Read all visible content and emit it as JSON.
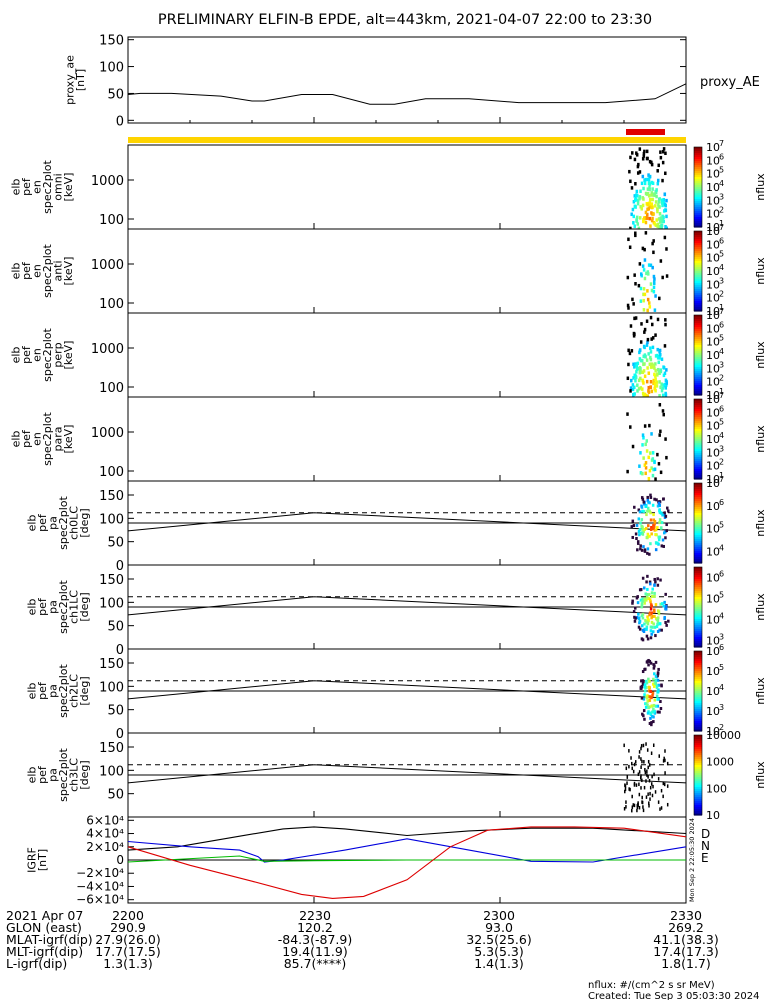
{
  "title": "PRELIMINARY ELFIN-B EPDE, alt=443km, 2021-04-07 22:00 to 23:30",
  "bars": {
    "yellow": "#ffd400",
    "red": "#e00000"
  },
  "chart_data": [
    {
      "type": "line",
      "name": "proxy_ae",
      "ylabel_lines": [
        "proxy_ae",
        "[nT]"
      ],
      "legend": "proxy_AE",
      "ylim": [
        -5,
        155
      ],
      "yticks": [
        "0",
        "50",
        "100",
        "150"
      ],
      "ytick_values": [
        0,
        50,
        100,
        150
      ],
      "x_minutes": [
        0,
        2,
        7,
        15,
        20,
        22,
        28,
        33,
        39,
        43,
        48,
        55,
        63,
        70,
        77,
        85,
        90
      ],
      "values": [
        48,
        50,
        50,
        45,
        36,
        36,
        48,
        48,
        30,
        30,
        40,
        40,
        33,
        33,
        33,
        40,
        68
      ]
    },
    {
      "type": "heatmap",
      "ylabel_lines": [
        "elb",
        "pef",
        "en",
        "spec2plot",
        "omni",
        "[keV]"
      ],
      "yticks": [
        "100",
        "1000"
      ],
      "scale": "log",
      "colorbar": {
        "label": "nflux",
        "ticks": [
          "10",
          "10",
          "10",
          "10",
          "10",
          "10",
          "10"
        ],
        "exponents": [
          "1",
          "2",
          "3",
          "4",
          "5",
          "6",
          "7"
        ],
        "range": [
          1,
          7
        ]
      }
    },
    {
      "type": "heatmap",
      "ylabel_lines": [
        "elb",
        "pef",
        "en",
        "spec2plot",
        "anti",
        "[keV]"
      ],
      "yticks": [
        "100",
        "1000"
      ],
      "scale": "log",
      "colorbar": {
        "label": "nflux",
        "ticks": [
          "10",
          "10",
          "10",
          "10",
          "10",
          "10",
          "10"
        ],
        "exponents": [
          "1",
          "2",
          "3",
          "4",
          "5",
          "6",
          "7"
        ],
        "range": [
          1,
          7
        ]
      }
    },
    {
      "type": "heatmap",
      "ylabel_lines": [
        "elb",
        "pef",
        "en",
        "spec2plot",
        "perp",
        "[keV]"
      ],
      "yticks": [
        "100",
        "1000"
      ],
      "scale": "log",
      "colorbar": {
        "label": "nflux",
        "ticks": [
          "10",
          "10",
          "10",
          "10",
          "10",
          "10",
          "10"
        ],
        "exponents": [
          "1",
          "2",
          "3",
          "4",
          "5",
          "6",
          "7"
        ],
        "range": [
          1,
          7
        ]
      }
    },
    {
      "type": "heatmap",
      "ylabel_lines": [
        "elb",
        "pef",
        "en",
        "spec2plot",
        "para",
        "[keV]"
      ],
      "yticks": [
        "100",
        "1000"
      ],
      "scale": "log",
      "colorbar": {
        "label": "nflux",
        "ticks": [
          "10",
          "10",
          "10",
          "10",
          "10",
          "10",
          "10"
        ],
        "exponents": [
          "1",
          "2",
          "3",
          "4",
          "5",
          "6",
          "7"
        ],
        "range": [
          1,
          7
        ]
      }
    },
    {
      "type": "heatmap",
      "ylabel_lines": [
        "elb",
        "pef",
        "pa",
        "spec2plot",
        "ch0LC",
        "[deg]"
      ],
      "yticks": [
        "0",
        "50",
        "100",
        "150"
      ],
      "ylim": [
        0,
        180
      ],
      "lines": {
        "dashed": 112,
        "solid": 90
      },
      "colorbar": {
        "label": "nflux",
        "ticks": [
          "10",
          "10",
          "10",
          "10"
        ],
        "exponents": [
          "4",
          "5",
          "6",
          "7"
        ],
        "range": [
          3.5,
          7
        ]
      }
    },
    {
      "type": "heatmap",
      "ylabel_lines": [
        "elb",
        "pef",
        "pa",
        "spec2plot",
        "ch1LC",
        "[deg]"
      ],
      "yticks": [
        "0",
        "50",
        "100",
        "150"
      ],
      "ylim": [
        0,
        180
      ],
      "lines": {
        "dashed": 112,
        "solid": 90
      },
      "colorbar": {
        "label": "nflux",
        "ticks": [
          "10",
          "10",
          "10",
          "10"
        ],
        "exponents": [
          "3",
          "4",
          "5",
          "6"
        ],
        "range": [
          2.7,
          6.5
        ]
      }
    },
    {
      "type": "heatmap",
      "ylabel_lines": [
        "elb",
        "pef",
        "pa",
        "spec2plot",
        "ch2LC",
        "[deg]"
      ],
      "yticks": [
        "0",
        "50",
        "100",
        "150"
      ],
      "ylim": [
        0,
        180
      ],
      "lines": {
        "dashed": 112,
        "solid": 90
      },
      "colorbar": {
        "label": "nflux",
        "ticks": [
          "10",
          "10",
          "10",
          "10",
          "10"
        ],
        "exponents": [
          "2",
          "3",
          "4",
          "5",
          "6"
        ],
        "range": [
          2,
          6
        ]
      }
    },
    {
      "type": "heatmap",
      "ylabel_lines": [
        "elb",
        "pef",
        "pa",
        "spec2plot",
        "ch3LC",
        "[deg]"
      ],
      "yticks": [
        "50",
        "100",
        "150"
      ],
      "ylim": [
        0,
        180
      ],
      "lines": {
        "dashed": 112,
        "solid": 90
      },
      "colorbar": {
        "label": "nflux",
        "ticks": [
          "10",
          "100",
          "1000",
          "10000"
        ],
        "range": [
          1,
          4
        ]
      }
    },
    {
      "type": "line",
      "name": "igrf",
      "ylabel_lines": [
        "IGRF",
        "[nT]"
      ],
      "ylim": [
        -65000,
        65000
      ],
      "yticks": [
        "6×10⁴",
        "4×10⁴",
        "2×10⁴",
        "0",
        "−2×10⁴",
        "−4×10⁴",
        "−6×10⁴"
      ],
      "ytick_values": [
        60000,
        40000,
        20000,
        0,
        -20000,
        -40000,
        -60000
      ],
      "series": [
        {
          "name": "D",
          "color": "#000000",
          "x_minutes": [
            0,
            8,
            18,
            25,
            30,
            35,
            45,
            55,
            65,
            75,
            90
          ],
          "values": [
            15000,
            20000,
            36000,
            47000,
            50000,
            47000,
            37000,
            44000,
            48000,
            48000,
            40000
          ]
        },
        {
          "name": "N",
          "color": "#0000dd",
          "x_minutes": [
            0,
            10,
            18,
            21,
            22,
            25,
            35,
            45,
            55,
            65,
            75,
            90
          ],
          "values": [
            28000,
            20000,
            15000,
            5000,
            -3000,
            0,
            15000,
            32000,
            15000,
            -2000,
            -3000,
            20000
          ]
        },
        {
          "name": "E",
          "color": "#00bb00",
          "x_minutes": [
            0,
            12,
            18,
            20,
            22,
            30,
            45,
            60,
            90
          ],
          "values": [
            -3000,
            3000,
            6000,
            2000,
            -2000,
            -1000,
            0,
            0,
            0
          ]
        },
        {
          "name": "",
          "color": "#dd0000",
          "x_minutes": [
            0,
            10,
            20,
            28,
            33,
            38,
            45,
            52,
            58,
            65,
            72,
            80,
            90
          ],
          "values": [
            20000,
            -8000,
            -32000,
            -52000,
            -58000,
            -55000,
            -30000,
            20000,
            45000,
            50000,
            50000,
            48000,
            35000
          ]
        }
      ],
      "legend": [
        "D",
        "N",
        "E"
      ]
    }
  ],
  "x_axis": {
    "ticks": [
      "2200",
      "2230",
      "2300",
      "2330"
    ],
    "tick_minutes": [
      0,
      30,
      60,
      90
    ]
  },
  "ephemeris": {
    "rows": [
      {
        "label": "2021 Apr 07",
        "values": [
          "2200",
          "2230",
          "2300",
          "2330"
        ]
      },
      {
        "label": "GLON (east)",
        "values": [
          "290.9",
          "120.2",
          "93.0",
          "269.2"
        ]
      },
      {
        "label": "MLAT-igrf(dip)",
        "values": [
          "27.9(26.0)",
          "-84.3(-87.9)",
          "32.5(25.6)",
          "41.1(38.3)"
        ]
      },
      {
        "label": "MLT-igrf(dip)",
        "values": [
          "17.7(17.5)",
          "19.4(11.9)",
          "5.3(5.3)",
          "17.4(17.3)"
        ]
      },
      {
        "label": "L-igrf(dip)",
        "values": [
          "1.3(1.3)",
          "85.7(****)",
          "1.4(1.3)",
          "1.8(1.7)"
        ]
      }
    ]
  },
  "footer": {
    "units": "nflux: #/(cm^2 s sr MeV)",
    "created": "Created: Tue Sep  3 05:03:30 2024",
    "side_stamp": "Mon Sep  2 22:05:30 2024"
  }
}
